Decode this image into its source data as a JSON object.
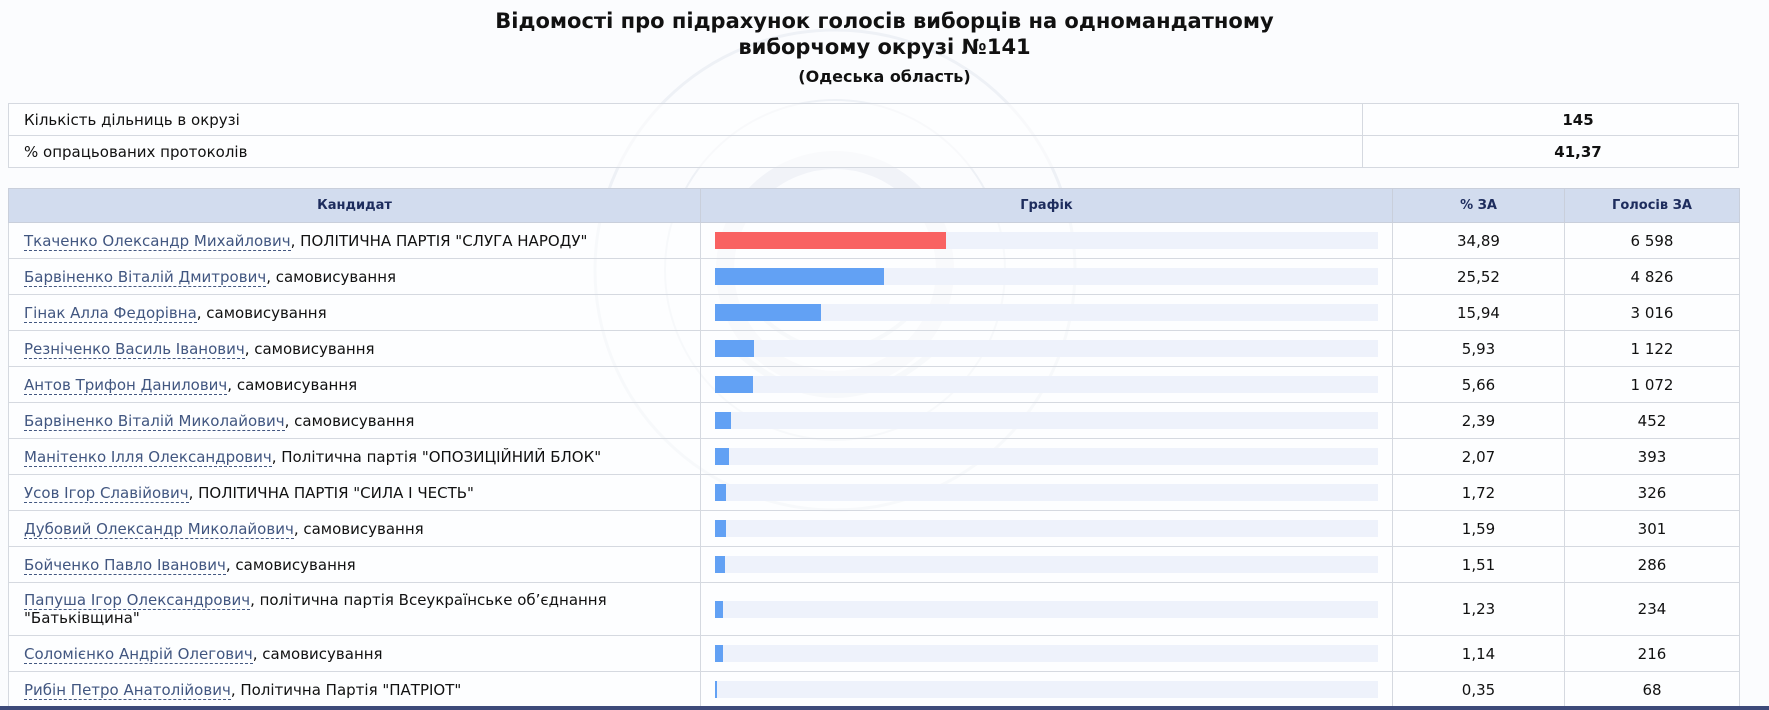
{
  "header": {
    "title_line1": "Відомості про підрахунок голосів виборців на одномандатному",
    "title_line2": "виборчому окрузі №141",
    "region": "(Одеська область)"
  },
  "summary": [
    {
      "label": "Кількість дільниць в окрузі",
      "value": "145"
    },
    {
      "label": "% опрацьованих протоколів",
      "value": "41,37"
    }
  ],
  "table": {
    "headers": {
      "candidate": "Кандидат",
      "graph": "Графік",
      "percent": "% ЗА",
      "votes": "Голосів ЗА"
    },
    "rows": [
      {
        "name": "Ткаченко Олександр Михайлович",
        "party": ", ПОЛІТИЧНА ПАРТІЯ \"СЛУГА НАРОДУ\"",
        "percent": "34,89",
        "votes": "6 598",
        "share": 34.89
      },
      {
        "name": "Барвіненко Віталій Дмитрович",
        "party": ", самовисування",
        "percent": "25,52",
        "votes": "4 826",
        "share": 25.52
      },
      {
        "name": "Гінак Алла Федорівна",
        "party": ", самовисування",
        "percent": "15,94",
        "votes": "3 016",
        "share": 15.94
      },
      {
        "name": "Резніченко Василь Іванович",
        "party": ", самовисування",
        "percent": "5,93",
        "votes": "1 122",
        "share": 5.93
      },
      {
        "name": "Антов Трифон Данилович",
        "party": ", самовисування",
        "percent": "5,66",
        "votes": "1 072",
        "share": 5.66
      },
      {
        "name": "Барвіненко Віталій Миколайович",
        "party": ", самовисування",
        "percent": "2,39",
        "votes": "452",
        "share": 2.39
      },
      {
        "name": "Манітенко Ілля Олександрович",
        "party": ", Політична партія \"ОПОЗИЦІЙНИЙ БЛОК\"",
        "percent": "2,07",
        "votes": "393",
        "share": 2.07
      },
      {
        "name": "Усов Ігор Славійович",
        "party": ", ПОЛІТИЧНА ПАРТІЯ \"СИЛА І ЧЕСТЬ\"",
        "percent": "1,72",
        "votes": "326",
        "share": 1.72
      },
      {
        "name": "Дубовий Олександр Миколайович",
        "party": ", самовисування",
        "percent": "1,59",
        "votes": "301",
        "share": 1.59
      },
      {
        "name": "Бойченко Павло Іванович",
        "party": ", самовисування",
        "percent": "1,51",
        "votes": "286",
        "share": 1.51
      },
      {
        "name": "Папуша Ігор Олександрович",
        "party": ", політична партія Всеукраїнське об’єднання \"Батьківщина\"",
        "percent": "1,23",
        "votes": "234",
        "share": 1.23
      },
      {
        "name": "Соломієнко Андрій Олегович",
        "party": ", самовисування",
        "percent": "1,14",
        "votes": "216",
        "share": 1.14
      },
      {
        "name": "Рибін Петро Анатолійович",
        "party": ", Політична Партія \"ПАТРІОТ\"",
        "percent": "0,35",
        "votes": "68",
        "share": 0.35
      }
    ]
  },
  "colors": {
    "leader_bar": "#f96262",
    "bar": "#62a1f4",
    "bar_track": "#eef2fb",
    "header_bg": "#d2dcee",
    "link": "#415680"
  }
}
